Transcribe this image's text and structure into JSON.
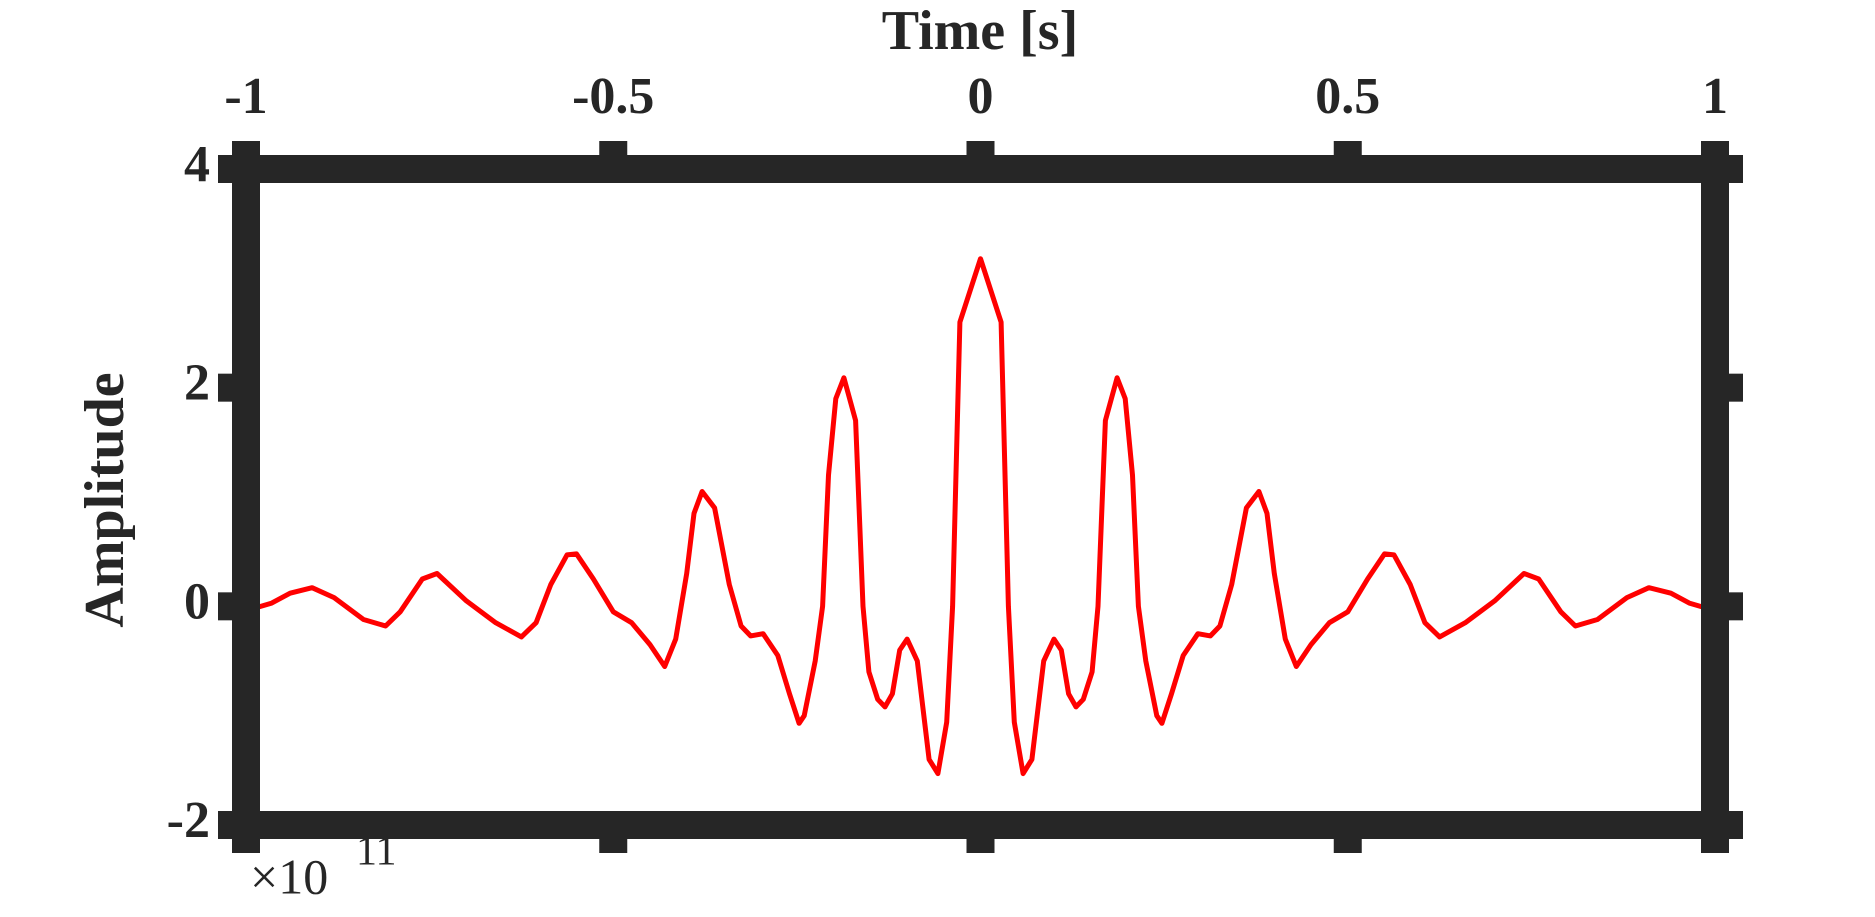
{
  "chart_data": {
    "type": "line",
    "xlabel": "Time [s]",
    "ylabel": "Amplitude",
    "y_multiplier": {
      "base": "×10",
      "exponent": "11"
    },
    "xlim": [
      -1,
      1
    ],
    "ylim": [
      -2,
      4
    ],
    "xticks": [
      -1,
      -0.5,
      0,
      0.5,
      1
    ],
    "yticks": [
      -2,
      0,
      2,
      4
    ],
    "x_axis_position": "top",
    "grid": false,
    "series": [
      {
        "color": "#ff0000",
        "x": [
          -1.0,
          -0.99,
          -0.965,
          -0.94,
          -0.91,
          -0.88,
          -0.84,
          -0.81,
          -0.79,
          -0.76,
          -0.74,
          -0.7,
          -0.66,
          -0.625,
          -0.605,
          -0.585,
          -0.563,
          -0.55,
          -0.527,
          -0.5,
          -0.475,
          -0.45,
          -0.43,
          -0.415,
          -0.4,
          -0.39,
          -0.379,
          -0.362,
          -0.342,
          -0.326,
          -0.313,
          -0.296,
          -0.276,
          -0.26,
          -0.247,
          -0.24,
          -0.225,
          -0.215,
          -0.207,
          -0.197,
          -0.186,
          -0.17,
          -0.16,
          -0.152,
          -0.14,
          -0.13,
          -0.12,
          -0.11,
          -0.1,
          -0.086,
          -0.07,
          -0.058,
          -0.046,
          -0.038,
          -0.028,
          0,
          0.028,
          0.038,
          0.046,
          0.058,
          0.07,
          0.086,
          0.1,
          0.11,
          0.12,
          0.13,
          0.14,
          0.152,
          0.16,
          0.17,
          0.186,
          0.197,
          0.207,
          0.215,
          0.225,
          0.24,
          0.247,
          0.26,
          0.276,
          0.296,
          0.313,
          0.326,
          0.342,
          0.362,
          0.379,
          0.39,
          0.4,
          0.415,
          0.43,
          0.45,
          0.475,
          0.5,
          0.527,
          0.55,
          0.563,
          0.585,
          0.605,
          0.625,
          0.66,
          0.7,
          0.74,
          0.76,
          0.79,
          0.81,
          0.84,
          0.88,
          0.91,
          0.94,
          0.965,
          0.99,
          1.0
        ],
        "values": [
          0,
          -0.02,
          0.03,
          0.12,
          0.17,
          0.08,
          -0.12,
          -0.18,
          -0.05,
          0.25,
          0.3,
          0.05,
          -0.15,
          -0.28,
          -0.15,
          0.2,
          0.47,
          0.48,
          0.25,
          -0.05,
          -0.15,
          -0.35,
          -0.55,
          -0.3,
          0.3,
          0.85,
          1.05,
          0.9,
          0.2,
          -0.18,
          -0.27,
          -0.25,
          -0.45,
          -0.8,
          -1.07,
          -1.0,
          -0.5,
          0,
          1.2,
          1.9,
          2.09,
          1.7,
          0,
          -0.6,
          -0.85,
          -0.92,
          -0.8,
          -0.4,
          -0.3,
          -0.5,
          -1.4,
          -1.53,
          -1.06,
          0,
          2.6,
          3.18,
          2.6,
          0,
          -1.06,
          -1.53,
          -1.4,
          -0.5,
          -0.3,
          -0.4,
          -0.8,
          -0.92,
          -0.85,
          -0.6,
          0,
          1.7,
          2.09,
          1.9,
          1.2,
          0,
          -0.5,
          -1.0,
          -1.07,
          -0.8,
          -0.45,
          -0.25,
          -0.27,
          -0.18,
          0.2,
          0.9,
          1.05,
          0.85,
          0.3,
          -0.3,
          -0.55,
          -0.35,
          -0.15,
          -0.05,
          0.25,
          0.48,
          0.47,
          0.2,
          -0.15,
          -0.28,
          -0.15,
          0.05,
          0.3,
          0.25,
          -0.05,
          -0.18,
          -0.12,
          0.08,
          0.17,
          0.12,
          0.03,
          -0.02,
          0
        ]
      }
    ]
  }
}
